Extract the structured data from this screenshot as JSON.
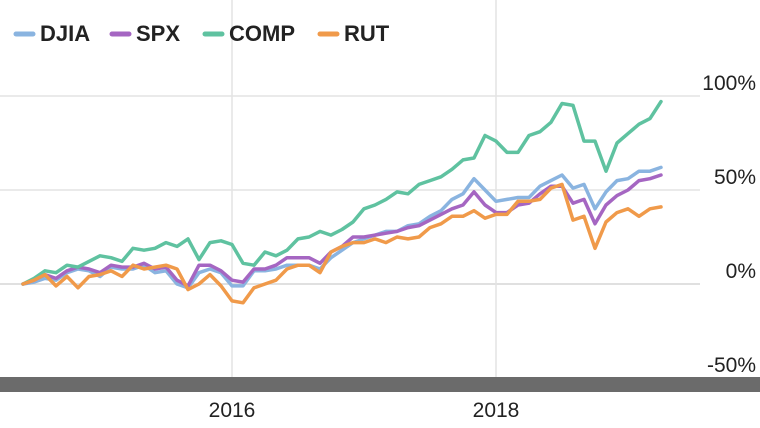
{
  "chart_data": {
    "type": "line",
    "title": "",
    "xlabel": "",
    "ylabel": "",
    "x_ticks": [
      "2016",
      "2018"
    ],
    "y_ticks": [
      "100%",
      "50%",
      "0%",
      "-50%"
    ],
    "ylim": [
      -50,
      100
    ],
    "x": [
      "2014-06",
      "2014-07",
      "2014-08",
      "2014-09",
      "2014-10",
      "2014-11",
      "2014-12",
      "2015-01",
      "2015-02",
      "2015-03",
      "2015-04",
      "2015-05",
      "2015-06",
      "2015-07",
      "2015-08",
      "2015-09",
      "2015-10",
      "2015-11",
      "2015-12",
      "2016-01",
      "2016-02",
      "2016-03",
      "2016-04",
      "2016-05",
      "2016-06",
      "2016-07",
      "2016-08",
      "2016-09",
      "2016-10",
      "2016-11",
      "2016-12",
      "2017-01",
      "2017-02",
      "2017-03",
      "2017-04",
      "2017-05",
      "2017-06",
      "2017-07",
      "2017-08",
      "2017-09",
      "2017-10",
      "2017-11",
      "2017-12",
      "2018-01",
      "2018-02",
      "2018-03",
      "2018-04",
      "2018-05",
      "2018-06",
      "2018-07",
      "2018-08",
      "2018-09",
      "2018-10",
      "2018-11",
      "2018-12",
      "2019-01",
      "2019-02",
      "2019-03",
      "2019-04"
    ],
    "grid": true,
    "legend": "top-left",
    "series": [
      {
        "name": "DJIA",
        "color": "#8ab4e0",
        "values": [
          0,
          1,
          3,
          2,
          6,
          8,
          7,
          4,
          9,
          8,
          8,
          10,
          6,
          7,
          0,
          -2,
          6,
          8,
          6,
          -1,
          -1,
          7,
          7,
          8,
          10,
          10,
          10,
          8,
          14,
          18,
          22,
          24,
          26,
          28,
          28,
          31,
          32,
          36,
          39,
          45,
          48,
          56,
          50,
          44,
          45,
          46,
          46,
          52,
          55,
          58,
          51,
          53,
          40,
          49,
          55,
          56,
          60,
          60,
          62
        ]
      },
      {
        "name": "SPX",
        "color": "#a566c2",
        "values": [
          0,
          2,
          5,
          3,
          7,
          9,
          8,
          6,
          10,
          9,
          9,
          11,
          8,
          9,
          2,
          -1,
          10,
          10,
          7,
          2,
          1,
          8,
          8,
          10,
          14,
          14,
          14,
          11,
          17,
          20,
          25,
          25,
          26,
          27,
          28,
          30,
          31,
          34,
          37,
          40,
          42,
          49,
          42,
          38,
          38,
          42,
          43,
          48,
          52,
          52,
          43,
          45,
          32,
          42,
          47,
          50,
          55,
          56,
          58
        ]
      },
      {
        "name": "COMP",
        "color": "#5fc2a0",
        "values": [
          0,
          3,
          7,
          6,
          10,
          9,
          12,
          15,
          14,
          12,
          19,
          18,
          19,
          22,
          20,
          24,
          13,
          22,
          23,
          21,
          11,
          10,
          17,
          15,
          18,
          24,
          25,
          28,
          26,
          29,
          33,
          40,
          42,
          45,
          49,
          48,
          53,
          55,
          57,
          61,
          66,
          67,
          79,
          76,
          70,
          70,
          79,
          81,
          86,
          96,
          95,
          76,
          76,
          60,
          75,
          80,
          85,
          88,
          97
        ]
      },
      {
        "name": "RUT",
        "color": "#f09a4a",
        "values": [
          0,
          2,
          5,
          -1,
          4,
          -2,
          4,
          5,
          7,
          4,
          10,
          8,
          9,
          10,
          8,
          -3,
          0,
          5,
          -1,
          -9,
          -10,
          -2,
          0,
          2,
          8,
          10,
          10,
          6,
          17,
          20,
          22,
          22,
          24,
          22,
          25,
          24,
          25,
          30,
          32,
          36,
          36,
          39,
          35,
          37,
          37,
          44,
          44,
          45,
          51,
          53,
          34,
          36,
          19,
          33,
          38,
          40,
          36,
          40,
          41
        ]
      }
    ]
  }
}
